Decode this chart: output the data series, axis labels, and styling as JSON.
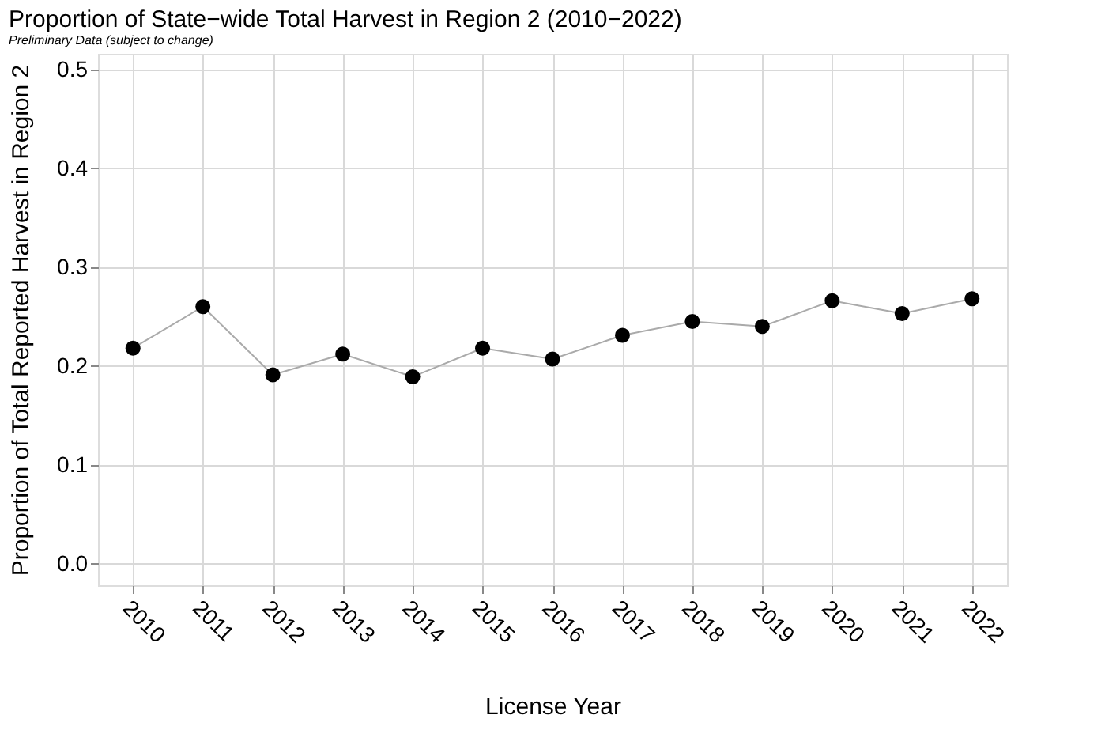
{
  "chart_data": {
    "type": "line",
    "title": "Proportion of State−wide Total Harvest in Region 2 (2010−2022)",
    "subtitle": "Preliminary Data (subject to change)",
    "xlabel": "License Year",
    "ylabel": "Proportion of Total Reported Harvest in Region 2",
    "categories": [
      "2010",
      "2011",
      "2012",
      "2013",
      "2014",
      "2015",
      "2016",
      "2017",
      "2018",
      "2019",
      "2020",
      "2021",
      "2022"
    ],
    "series": [
      {
        "color": "#000000",
        "values": [
          0.218,
          0.26,
          0.191,
          0.212,
          0.189,
          0.218,
          0.207,
          0.231,
          0.245,
          0.24,
          0.266,
          0.253,
          0.268
        ]
      }
    ],
    "ylim": [
      -0.022,
      0.516
    ],
    "yticks": [
      {
        "value": 0,
        "label": "0.0"
      },
      0.1,
      0.2,
      0.3,
      0.4,
      0.5
    ],
    "grid": true,
    "marker": "circle"
  }
}
